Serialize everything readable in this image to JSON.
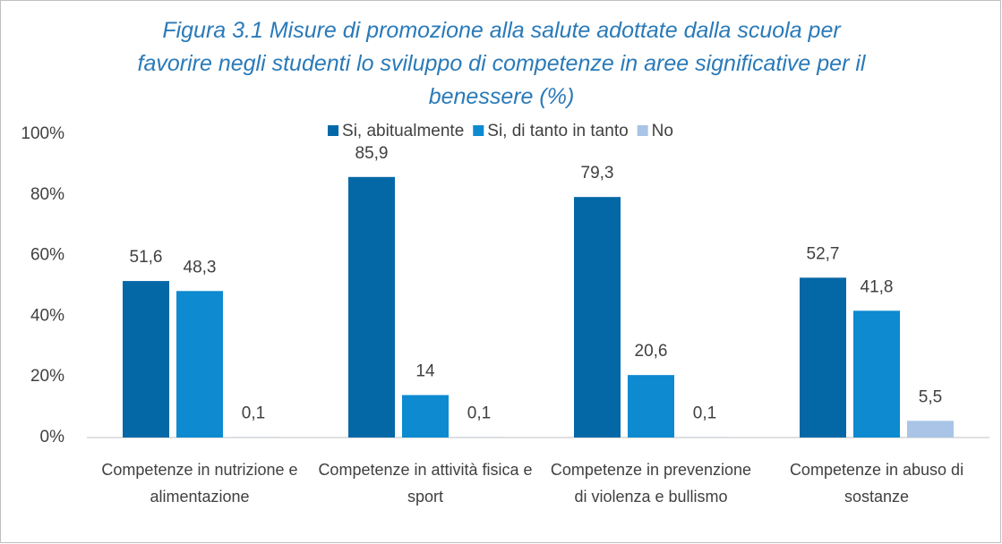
{
  "chart_data": {
    "type": "bar",
    "title": "Figura 3.1 Misure di promozione alla salute adottate dalla scuola per favorire negli studenti lo sviluppo di competenze in aree significative per il benessere (%)",
    "categories": [
      "Competenze in nutrizione e alimentazione",
      "Competenze in attività fisica e sport",
      "Competenze in prevenzione di violenza e bullismo",
      "Competenze in abuso di sostanze"
    ],
    "series": [
      {
        "name": "Si, abitualmente",
        "color": "#0568a6",
        "values": [
          51.6,
          85.9,
          79.3,
          52.7
        ],
        "value_labels": [
          "51,6",
          "85,9",
          "79,3",
          "52,7"
        ]
      },
      {
        "name": "Si, di tanto in tanto",
        "color": "#0d8ad0",
        "values": [
          48.3,
          14,
          20.6,
          41.8
        ],
        "value_labels": [
          "48,3",
          "14",
          "20,6",
          "41,8"
        ]
      },
      {
        "name": "No",
        "color": "#a9c4e6",
        "values": [
          0.1,
          0.1,
          0.1,
          5.5
        ],
        "value_labels": [
          "0,1",
          "0,1",
          "0,1",
          "5,5"
        ]
      }
    ],
    "ylim": [
      0,
      100
    ],
    "yticks": [
      {
        "value": 0,
        "label": "0%"
      },
      {
        "value": 20,
        "label": "20%"
      },
      {
        "value": 40,
        "label": "40%"
      },
      {
        "value": 60,
        "label": "60%"
      },
      {
        "value": 80,
        "label": "80%"
      },
      {
        "value": 100,
        "label": "100%"
      }
    ],
    "grid": false,
    "legend": "top"
  }
}
